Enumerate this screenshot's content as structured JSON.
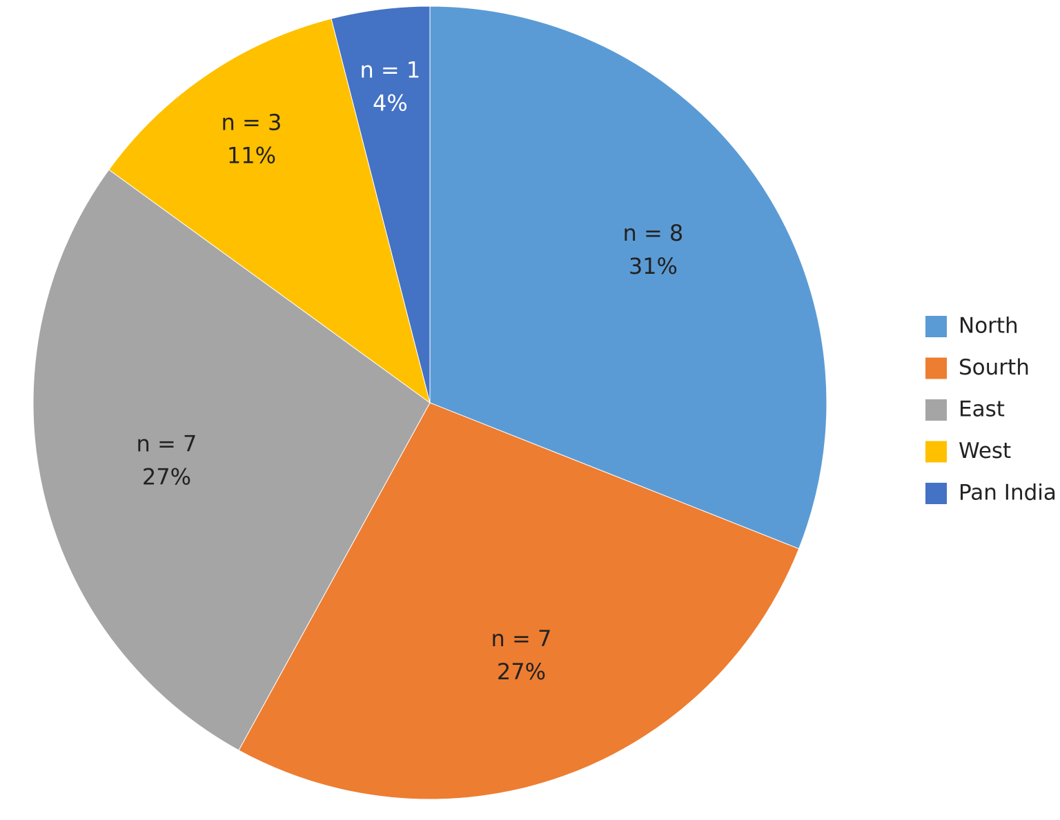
{
  "chart_data": {
    "type": "pie",
    "categories": [
      "North",
      "Sourth",
      "East",
      "West",
      "Pan India"
    ],
    "values": [
      31,
      27,
      27,
      11,
      4
    ],
    "value_labels": [
      "31%",
      "27%",
      "27%",
      "11%",
      "4%"
    ],
    "n_labels": [
      "n = 8",
      "n = 7",
      "n = 7",
      "n = 3",
      "n = 1"
    ],
    "colors": [
      "#5b9bd5",
      "#ed7d31",
      "#a5a5a5",
      "#ffc000",
      "#4472c4"
    ],
    "legend": "right"
  }
}
